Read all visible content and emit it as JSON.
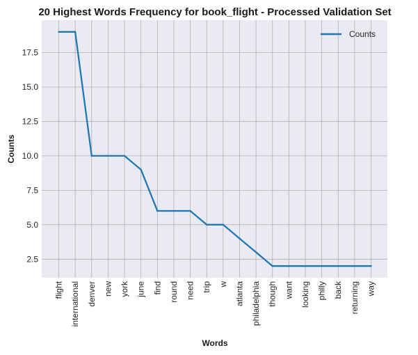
{
  "chart_data": {
    "type": "line",
    "title": "20 Highest Words Frequency for book_flight - Processed Validation Set",
    "xlabel": "Words",
    "ylabel": "Counts",
    "categories": [
      "flight",
      "international",
      "denver",
      "new",
      "york",
      "june",
      "find",
      "round",
      "need",
      "trip",
      "w",
      "atlanta",
      "philadelphia",
      "though",
      "want",
      "looking",
      "philly",
      "back",
      "returning",
      "way"
    ],
    "series": [
      {
        "name": "Counts",
        "values": [
          19,
          19,
          10,
          10,
          10,
          9,
          6,
          6,
          6,
          5,
          5,
          4,
          3,
          2,
          2,
          2,
          2,
          2,
          2,
          2
        ],
        "color": "#1f77b4"
      }
    ],
    "yticks": [
      "2.5",
      "5.0",
      "7.5",
      "10.0",
      "12.5",
      "15.0",
      "17.5"
    ],
    "ylim": [
      1.15,
      19.85
    ],
    "grid": true,
    "legend_position": "top-right",
    "background_color": "#eaeaf2",
    "grid_color": "#b0b0b0"
  }
}
